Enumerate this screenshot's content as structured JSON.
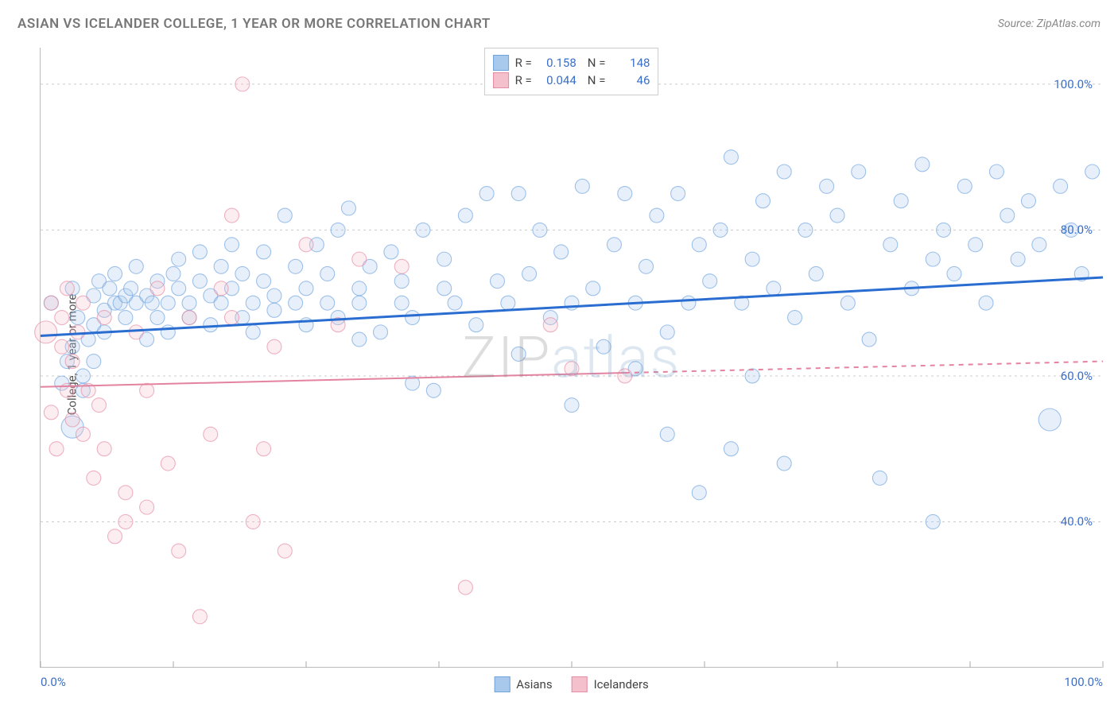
{
  "title": "ASIAN VS ICELANDER COLLEGE, 1 YEAR OR MORE CORRELATION CHART",
  "source": "Source: ZipAtlas.com",
  "ylabel": "College, 1 year or more",
  "watermark": {
    "part1": "ZIP",
    "part2": "atlas"
  },
  "chart": {
    "type": "scatter",
    "xlim": [
      0,
      100
    ],
    "ylim": [
      20,
      105
    ],
    "yticks": [
      40,
      60,
      80,
      100
    ],
    "ytick_labels": [
      "40.0%",
      "60.0%",
      "80.0%",
      "100.0%"
    ],
    "xtick_positions": [
      0,
      12.5,
      25,
      37.5,
      50,
      62.5,
      75,
      87.5,
      100
    ],
    "xtick_labels": {
      "0": "0.0%",
      "100": "100.0%"
    },
    "background_color": "#ffffff",
    "grid_color": "#cccccc",
    "point_radius": 9,
    "point_radius_large": 14,
    "series": [
      {
        "name": "Asians",
        "color_fill": "#a9c9ec",
        "color_stroke": "#6fa3de",
        "trend": {
          "y_at_x0": 65.5,
          "y_at_x100": 73.5,
          "color": "#2a6dd0",
          "width": 3,
          "style": "solid",
          "extend_to": 100
        },
        "R": "0.158",
        "N": "148",
        "points": [
          [
            1,
            70
          ],
          [
            2,
            59
          ],
          [
            2.5,
            62
          ],
          [
            3,
            53,
            "L"
          ],
          [
            3,
            64
          ],
          [
            3,
            72
          ],
          [
            3.5,
            68
          ],
          [
            4,
            60
          ],
          [
            4,
            58
          ],
          [
            4.5,
            65
          ],
          [
            5,
            62
          ],
          [
            5,
            67
          ],
          [
            5,
            71
          ],
          [
            5.5,
            73
          ],
          [
            6,
            69
          ],
          [
            6,
            66
          ],
          [
            6.5,
            72
          ],
          [
            7,
            70
          ],
          [
            7,
            74
          ],
          [
            7.5,
            70
          ],
          [
            8,
            71
          ],
          [
            8,
            68
          ],
          [
            8.5,
            72
          ],
          [
            9,
            70
          ],
          [
            9,
            75
          ],
          [
            10,
            65
          ],
          [
            10,
            71
          ],
          [
            10.5,
            70
          ],
          [
            11,
            68
          ],
          [
            11,
            73
          ],
          [
            12,
            70
          ],
          [
            12,
            66
          ],
          [
            12.5,
            74
          ],
          [
            13,
            72
          ],
          [
            13,
            76
          ],
          [
            14,
            70
          ],
          [
            14,
            68
          ],
          [
            15,
            73
          ],
          [
            15,
            77
          ],
          [
            16,
            71
          ],
          [
            16,
            67
          ],
          [
            17,
            70
          ],
          [
            17,
            75
          ],
          [
            18,
            72
          ],
          [
            18,
            78
          ],
          [
            19,
            68
          ],
          [
            19,
            74
          ],
          [
            20,
            70
          ],
          [
            20,
            66
          ],
          [
            21,
            73
          ],
          [
            21,
            77
          ],
          [
            22,
            69
          ],
          [
            22,
            71
          ],
          [
            23,
            82
          ],
          [
            24,
            70
          ],
          [
            24,
            75
          ],
          [
            25,
            67
          ],
          [
            25,
            72
          ],
          [
            26,
            78
          ],
          [
            27,
            70
          ],
          [
            27,
            74
          ],
          [
            28,
            80
          ],
          [
            28,
            68
          ],
          [
            29,
            83
          ],
          [
            30,
            72
          ],
          [
            30,
            70
          ],
          [
            31,
            75
          ],
          [
            32,
            66
          ],
          [
            33,
            77
          ],
          [
            34,
            70
          ],
          [
            34,
            73
          ],
          [
            35,
            68
          ],
          [
            36,
            80
          ],
          [
            37,
            58
          ],
          [
            38,
            72
          ],
          [
            38,
            76
          ],
          [
            39,
            70
          ],
          [
            40,
            82
          ],
          [
            41,
            67
          ],
          [
            42,
            85
          ],
          [
            43,
            73
          ],
          [
            44,
            70
          ],
          [
            45,
            85
          ],
          [
            46,
            74
          ],
          [
            47,
            80
          ],
          [
            48,
            68
          ],
          [
            49,
            77
          ],
          [
            50,
            70
          ],
          [
            50,
            56
          ],
          [
            51,
            86
          ],
          [
            52,
            72
          ],
          [
            53,
            64
          ],
          [
            54,
            78
          ],
          [
            55,
            85
          ],
          [
            56,
            70
          ],
          [
            57,
            75
          ],
          [
            58,
            82
          ],
          [
            59,
            66
          ],
          [
            59,
            52
          ],
          [
            60,
            85
          ],
          [
            61,
            70
          ],
          [
            62,
            78
          ],
          [
            62,
            44
          ],
          [
            63,
            73
          ],
          [
            64,
            80
          ],
          [
            65,
            90
          ],
          [
            66,
            70
          ],
          [
            67,
            76
          ],
          [
            67,
            60
          ],
          [
            68,
            84
          ],
          [
            69,
            72
          ],
          [
            70,
            88
          ],
          [
            71,
            68
          ],
          [
            72,
            80
          ],
          [
            73,
            74
          ],
          [
            74,
            86
          ],
          [
            75,
            82
          ],
          [
            76,
            70
          ],
          [
            77,
            88
          ],
          [
            78,
            65
          ],
          [
            79,
            46
          ],
          [
            80,
            78
          ],
          [
            81,
            84
          ],
          [
            82,
            72
          ],
          [
            83,
            89
          ],
          [
            84,
            76
          ],
          [
            84,
            40
          ],
          [
            85,
            80
          ],
          [
            86,
            74
          ],
          [
            87,
            86
          ],
          [
            88,
            78
          ],
          [
            89,
            70
          ],
          [
            90,
            88
          ],
          [
            91,
            82
          ],
          [
            92,
            76
          ],
          [
            93,
            84
          ],
          [
            94,
            78
          ],
          [
            95,
            54,
            "L"
          ],
          [
            96,
            86
          ],
          [
            97,
            80
          ],
          [
            98,
            74
          ],
          [
            99,
            88
          ],
          [
            65,
            50
          ],
          [
            70,
            48
          ],
          [
            56,
            61
          ],
          [
            35,
            59
          ],
          [
            30,
            65
          ],
          [
            45,
            63
          ]
        ]
      },
      {
        "name": "Icelanders",
        "color_fill": "#f4c0cc",
        "color_stroke": "#e68aa3",
        "trend": {
          "y_at_x0": 58.5,
          "y_at_x100": 62.0,
          "color": "#e383a0",
          "width": 2,
          "style": "solid-then-dash",
          "solid_until_x": 55
        },
        "R": "0.044",
        "N": "46",
        "points": [
          [
            0.5,
            66,
            "L"
          ],
          [
            1,
            70
          ],
          [
            1,
            55
          ],
          [
            1.5,
            50
          ],
          [
            2,
            68
          ],
          [
            2,
            64
          ],
          [
            2.5,
            72
          ],
          [
            2.5,
            58
          ],
          [
            3,
            62
          ],
          [
            3,
            54
          ],
          [
            3.5,
            66
          ],
          [
            4,
            70
          ],
          [
            4,
            52
          ],
          [
            4.5,
            58
          ],
          [
            5,
            46
          ],
          [
            5.5,
            56
          ],
          [
            6,
            68
          ],
          [
            6,
            50
          ],
          [
            7,
            38
          ],
          [
            8,
            44
          ],
          [
            8,
            40
          ],
          [
            9,
            66
          ],
          [
            10,
            42
          ],
          [
            10,
            58
          ],
          [
            11,
            72
          ],
          [
            12,
            48
          ],
          [
            13,
            36
          ],
          [
            14,
            68
          ],
          [
            15,
            27
          ],
          [
            16,
            52
          ],
          [
            17,
            72
          ],
          [
            18,
            68
          ],
          [
            18,
            82
          ],
          [
            19,
            100
          ],
          [
            20,
            40
          ],
          [
            21,
            50
          ],
          [
            22,
            64
          ],
          [
            23,
            36
          ],
          [
            25,
            78
          ],
          [
            28,
            67
          ],
          [
            30,
            76
          ],
          [
            34,
            75
          ],
          [
            40,
            31
          ],
          [
            48,
            67
          ],
          [
            50,
            61
          ],
          [
            55,
            60
          ]
        ]
      }
    ]
  },
  "legend_top_labels": {
    "R": "R =",
    "N": "N ="
  },
  "legend_bottom": [
    {
      "label": "Asians",
      "fill": "#a9c9ec",
      "stroke": "#6fa3de"
    },
    {
      "label": "Icelanders",
      "fill": "#f4c0cc",
      "stroke": "#e68aa3"
    }
  ]
}
